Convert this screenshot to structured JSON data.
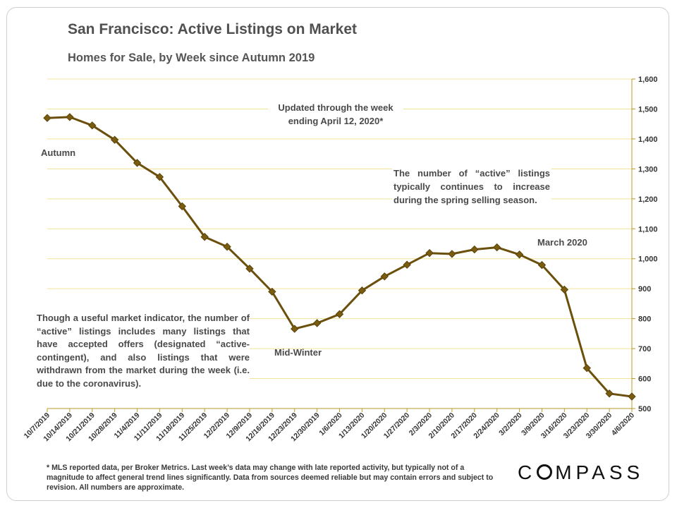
{
  "title": "San Francisco: Active Listings on Market",
  "subtitle": "Homes for Sale, by Week since Autumn 2019",
  "annotations": {
    "updated_line1": "Updated through the week",
    "updated_line2": "ending April 12, 2020*",
    "autumn": "Autumn",
    "spring": "The number of “active” listings typically continues to increase during the spring selling season.",
    "march": "March 2020",
    "midwinter": "Mid-Winter",
    "indicator": "Though a useful market indicator, the number of “active” listings includes many listings that have accepted offers (designated “active-contingent), and also listings that were withdrawn from the market during the week (i.e. due to the coronavirus)."
  },
  "footnote": "* MLS reported data, per Broker Metrics. Last week’s data may change with late reported activity, but typically not of a magnitude to affect general trend lines significantly. Data from sources deemed reliable but may contain errors and subject to revision. All numbers are approximate.",
  "logo": {
    "left": "C",
    "right": "MPASS",
    "icon": "compass-o-ring-icon"
  },
  "colors": {
    "line": "#6b4f0c",
    "marker": "#7a5c10",
    "grid": "#f0e39a",
    "axis": "#b79a2a",
    "text": "#4a4a4a"
  },
  "chart_data": {
    "type": "line",
    "title": "San Francisco: Active Listings on Market",
    "subtitle": "Homes for Sale, by Week since Autumn 2019",
    "xlabel": "",
    "ylabel": "",
    "y_axis_side": "right",
    "ylim": [
      500,
      1600
    ],
    "yticks": [
      500,
      600,
      700,
      800,
      900,
      1000,
      1100,
      1200,
      1300,
      1400,
      1500,
      1600
    ],
    "ytick_labels": [
      "500",
      "600",
      "700",
      "800",
      "900",
      "1,000",
      "1,100",
      "1,200",
      "1,300",
      "1,400",
      "1,500",
      "1,600"
    ],
    "grid": true,
    "legend": "none",
    "categories": [
      "10/7/2019",
      "10/14/2019",
      "10/21/2019",
      "10/28/2019",
      "11/4/2019",
      "11/11/2019",
      "11/18/2019",
      "11/25/2019",
      "12/2/2019",
      "12/9/2019",
      "12/16/2019",
      "12/23/2019",
      "12/30/2019",
      "1/6/2020",
      "1/13/2020",
      "1/20/2020",
      "1/27/2020",
      "2/3/2020",
      "2/10/2020",
      "2/17/2020",
      "2/24/2020",
      "3/2/2020",
      "3/9/2020",
      "3/16/2020",
      "3/23/2020",
      "3/30/2020",
      "4/6/2020"
    ],
    "series": [
      {
        "name": "Active Listings",
        "values": [
          1470,
          1473,
          1445,
          1397,
          1320,
          1273,
          1175,
          1073,
          1040,
          967,
          890,
          766,
          785,
          815,
          894,
          941,
          980,
          1019,
          1016,
          1031,
          1038,
          1014,
          979,
          897,
          635,
          550,
          540
        ]
      }
    ]
  }
}
